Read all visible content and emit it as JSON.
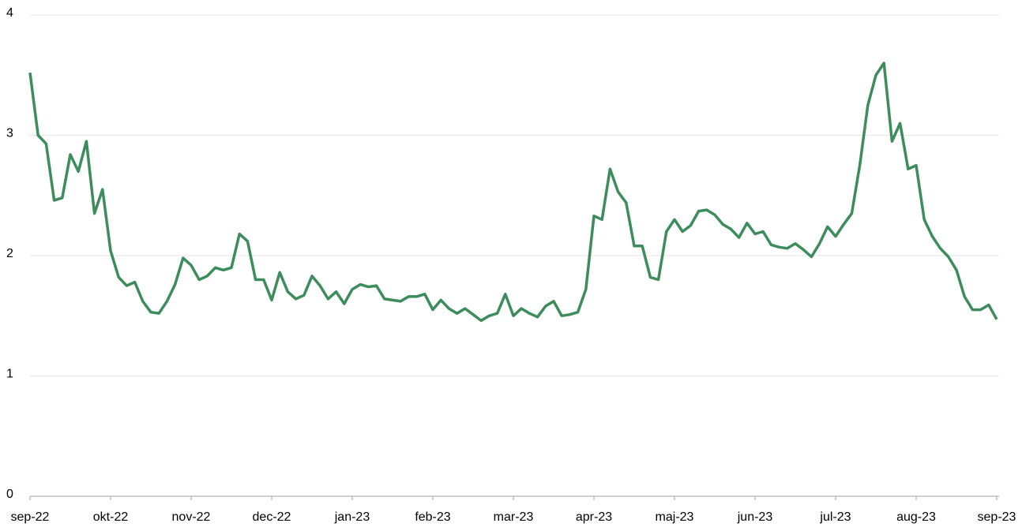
{
  "chart_data": {
    "type": "line",
    "categories": [
      "sep-22",
      null,
      null,
      null,
      null,
      null,
      null,
      null,
      null,
      null,
      "okt-22",
      null,
      null,
      null,
      null,
      null,
      null,
      null,
      null,
      null,
      "nov-22",
      null,
      null,
      null,
      null,
      null,
      null,
      null,
      null,
      null,
      "dec-22",
      null,
      null,
      null,
      null,
      null,
      null,
      null,
      null,
      null,
      "jan-23",
      null,
      null,
      null,
      null,
      null,
      null,
      null,
      null,
      null,
      "feb-23",
      null,
      null,
      null,
      null,
      null,
      null,
      null,
      null,
      null,
      "mar-23",
      null,
      null,
      null,
      null,
      null,
      null,
      null,
      null,
      null,
      "apr-23",
      null,
      null,
      null,
      null,
      null,
      null,
      null,
      null,
      null,
      "maj-23",
      null,
      null,
      null,
      null,
      null,
      null,
      null,
      null,
      null,
      "jun-23",
      null,
      null,
      null,
      null,
      null,
      null,
      null,
      null,
      null,
      "jul-23",
      null,
      null,
      null,
      null,
      null,
      null,
      null,
      null,
      null,
      "aug-23",
      null,
      null,
      null,
      null,
      null,
      null,
      null,
      null,
      null,
      "sep-23"
    ],
    "values": [
      3.52,
      3.0,
      2.93,
      2.46,
      2.48,
      2.84,
      2.7,
      2.95,
      2.35,
      2.55,
      2.04,
      1.82,
      1.75,
      1.78,
      1.62,
      1.53,
      1.52,
      1.62,
      1.76,
      1.98,
      1.92,
      1.8,
      1.83,
      1.9,
      1.88,
      1.9,
      2.18,
      2.12,
      1.8,
      1.8,
      1.63,
      1.86,
      1.7,
      1.64,
      1.67,
      1.83,
      1.75,
      1.64,
      1.7,
      1.6,
      1.72,
      1.76,
      1.74,
      1.75,
      1.64,
      1.63,
      1.62,
      1.66,
      1.66,
      1.68,
      1.55,
      1.63,
      1.56,
      1.52,
      1.56,
      1.51,
      1.46,
      1.5,
      1.52,
      1.68,
      1.5,
      1.56,
      1.52,
      1.49,
      1.58,
      1.62,
      1.5,
      1.51,
      1.53,
      1.72,
      2.33,
      2.3,
      2.72,
      2.53,
      2.44,
      2.08,
      2.08,
      1.82,
      1.8,
      2.2,
      2.3,
      2.2,
      2.25,
      2.37,
      2.38,
      2.34,
      2.26,
      2.22,
      2.15,
      2.27,
      2.18,
      2.2,
      2.09,
      2.07,
      2.06,
      2.1,
      2.05,
      1.99,
      2.1,
      2.24,
      2.16,
      2.26,
      2.35,
      2.75,
      3.25,
      3.5,
      3.6,
      2.95,
      3.1,
      2.72,
      2.75,
      2.3,
      2.16,
      2.06,
      1.99,
      1.88,
      1.66,
      1.55,
      1.55,
      1.59,
      1.47
    ],
    "color": "#3d8c5b",
    "ylim": [
      0,
      4
    ],
    "yticks": [
      0,
      1,
      2,
      3,
      4
    ],
    "grid": true
  }
}
